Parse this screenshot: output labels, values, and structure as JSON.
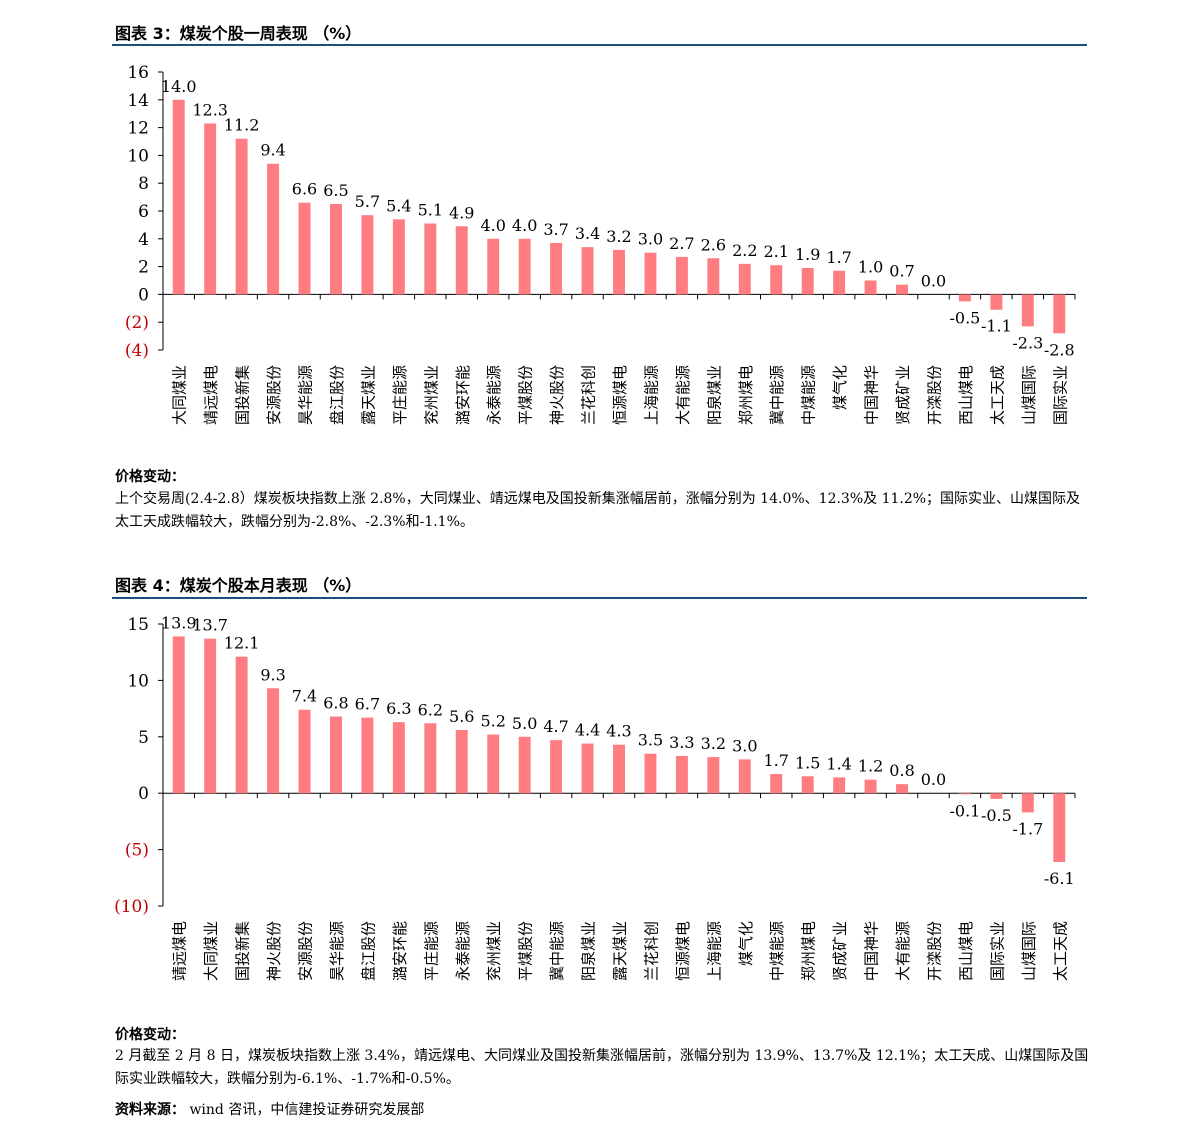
{
  "fig3": {
    "title": "图表 3：煤炭个股一周表现 （%）",
    "chart_data": {
      "type": "bar",
      "ylim": [
        -4,
        16
      ],
      "yticks": [
        16,
        14,
        12,
        10,
        8,
        6,
        4,
        2,
        0,
        -2,
        -4
      ],
      "ytick_labels": [
        "16",
        "14",
        "12",
        "10",
        "8",
        "6",
        "4",
        "2",
        "0",
        "(2)",
        "(4)"
      ],
      "bar_color": "#ff7c80",
      "negative_tick_color": "#c00000",
      "categories": [
        "大同煤业",
        "靖远煤电",
        "国投新集",
        "安源股份",
        "昊华能源",
        "盘江股份",
        "露天煤业",
        "平庄能源",
        "兖州煤业",
        "潞安环能",
        "永泰能源",
        "平煤股份",
        "神火股份",
        "兰花科创",
        "恒源煤电",
        "上海能源",
        "大有能源",
        "阳泉煤业",
        "郑州煤电",
        "冀中能源",
        "中煤能源",
        "煤气化",
        "中国神华",
        "贤成矿业",
        "开滦股份",
        "西山煤电",
        "太工天成",
        "山煤国际",
        "国际实业"
      ],
      "values": [
        14.0,
        12.3,
        11.2,
        9.4,
        6.6,
        6.5,
        5.7,
        5.4,
        5.1,
        4.9,
        4.0,
        4.0,
        3.7,
        3.4,
        3.2,
        3.0,
        2.7,
        2.6,
        2.2,
        2.1,
        1.9,
        1.7,
        1.0,
        0.7,
        0.0,
        -0.5,
        -1.1,
        -2.3,
        -2.8
      ],
      "labels": [
        "14.0",
        "12.3",
        "11.2",
        "9.4",
        "6.6",
        "6.5",
        "5.7",
        "5.4",
        "5.1",
        "4.9",
        "4.0",
        "4.0",
        "3.7",
        "3.4",
        "3.2",
        "3.0",
        "2.7",
        "2.6",
        "2.2",
        "2.1",
        "1.9",
        "1.7",
        "1.0",
        "0.7",
        "0.0",
        "-0.5",
        "-1.1",
        "-2.3",
        "-2.8"
      ]
    },
    "caption_label": "价格变动：",
    "caption_text": "上个交易周(2.4-2.8）煤炭板块指数上涨 2.8%，大同煤业、靖远煤电及国投新集涨幅居前，涨幅分别为 14.0%、12.3%及 11.2%；国际实业、山煤国际及太工天成跌幅较大，跌幅分别为-2.8%、-2.3%和-1.1%。"
  },
  "fig4": {
    "title": "图表 4：煤炭个股本月表现 （%）",
    "chart_data": {
      "type": "bar",
      "ylim": [
        -10,
        15
      ],
      "yticks": [
        15,
        10,
        5,
        0,
        -5,
        -10
      ],
      "ytick_labels": [
        "15",
        "10",
        "5",
        "0",
        "(5)",
        "(10)"
      ],
      "bar_color": "#ff7c80",
      "negative_tick_color": "#c00000",
      "categories": [
        "靖远煤电",
        "大同煤业",
        "国投新集",
        "神火股份",
        "安源股份",
        "昊华能源",
        "盘江股份",
        "潞安环能",
        "平庄能源",
        "永泰能源",
        "兖州煤业",
        "平煤股份",
        "冀中能源",
        "阳泉煤业",
        "露天煤业",
        "兰花科创",
        "恒源煤电",
        "上海能源",
        "煤气化",
        "中煤能源",
        "郑州煤电",
        "贤成矿业",
        "中国神华",
        "大有能源",
        "开滦股份",
        "西山煤电",
        "国际实业",
        "山煤国际",
        "太工天成"
      ],
      "values": [
        13.9,
        13.7,
        12.1,
        9.3,
        7.4,
        6.8,
        6.7,
        6.3,
        6.2,
        5.6,
        5.2,
        5.0,
        4.7,
        4.4,
        4.3,
        3.5,
        3.3,
        3.2,
        3.0,
        1.7,
        1.5,
        1.4,
        1.2,
        0.8,
        0.0,
        -0.1,
        -0.5,
        -1.7,
        -6.1
      ],
      "labels": [
        "13.9",
        "13.7",
        "12.1",
        "9.3",
        "7.4",
        "6.8",
        "6.7",
        "6.3",
        "6.2",
        "5.6",
        "5.2",
        "5.0",
        "4.7",
        "4.4",
        "4.3",
        "3.5",
        "3.3",
        "3.2",
        "3.0",
        "1.7",
        "1.5",
        "1.4",
        "1.2",
        "0.8",
        "0.0",
        "-0.1",
        "-0.5",
        "-1.7",
        "-6.1"
      ]
    },
    "caption_label": "价格变动：",
    "caption_text": "2 月截至 2 月 8 日，煤炭板块指数上涨 3.4%，靖远煤电、大同煤业及国投新集涨幅居前，涨幅分别为 13.9%、13.7%及 12.1%；太工天成、山煤国际及国际实业跌幅较大，跌幅分别为-6.1%、-1.7%和-0.5%。",
    "source_label": "资料来源：",
    "source_text": " wind 咨讯，中信建投证券研究发展部"
  }
}
